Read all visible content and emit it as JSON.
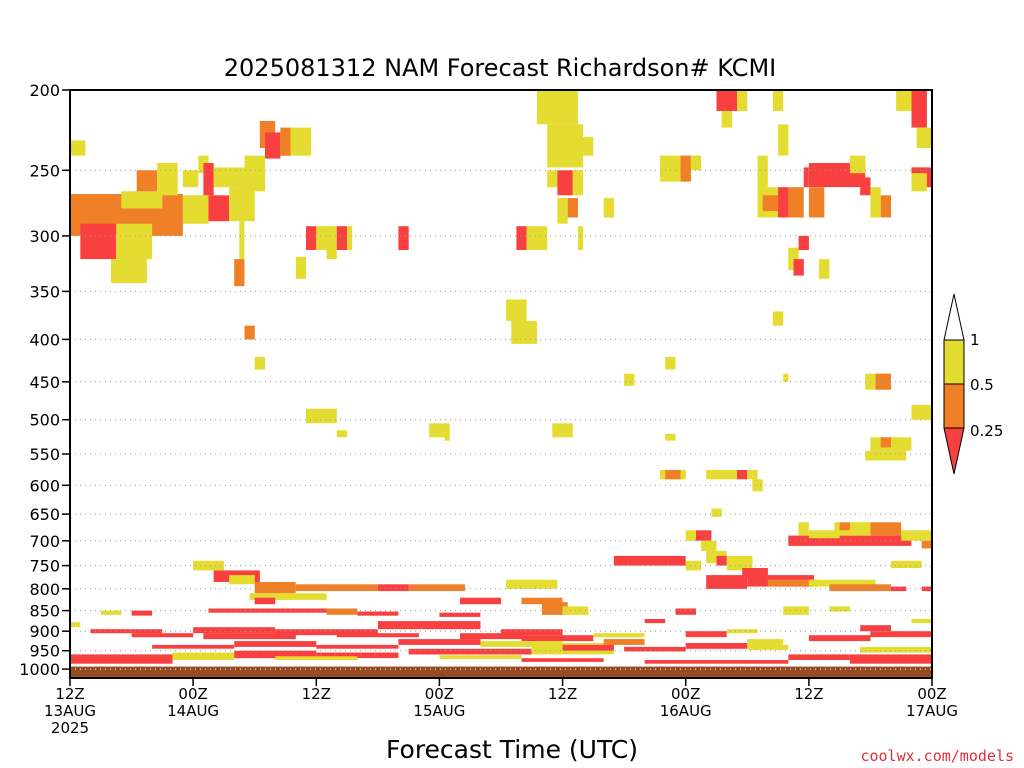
{
  "colors": {
    "lt_025": "#f84040",
    "from_025_to_05": "#f08028",
    "from_05_to_1": "#e4dc30",
    "ground": "#964b23",
    "watermark": "#e0303a"
  },
  "chart_data": {
    "type": "heatmap",
    "title": "2025081312 NAM Forecast Richardson# KCMI",
    "xlabel": "Forecast Time (UTC)",
    "ylabel": "",
    "x_range_hours": [
      0,
      84
    ],
    "y_range_hpa": [
      200,
      1025
    ],
    "y_scale": "log-pressure",
    "y_ticks": [
      200,
      250,
      300,
      350,
      400,
      450,
      500,
      550,
      600,
      650,
      700,
      750,
      800,
      850,
      900,
      950,
      1000
    ],
    "x_ticks": [
      {
        "hour": 0,
        "time": "12Z",
        "date": "13AUG",
        "year": "2025"
      },
      {
        "hour": 12,
        "time": "00Z",
        "date": "14AUG",
        "year": ""
      },
      {
        "hour": 24,
        "time": "12Z",
        "date": "",
        "year": ""
      },
      {
        "hour": 36,
        "time": "00Z",
        "date": "15AUG",
        "year": ""
      },
      {
        "hour": 48,
        "time": "12Z",
        "date": "",
        "year": ""
      },
      {
        "hour": 60,
        "time": "00Z",
        "date": "16AUG",
        "year": ""
      },
      {
        "hour": 72,
        "time": "12Z",
        "date": "",
        "year": ""
      },
      {
        "hour": 84,
        "time": "00Z",
        "date": "17AUG",
        "year": ""
      }
    ],
    "grid": "dotted horizontal at each pressure tick",
    "legend": {
      "placement": "right",
      "labels": [
        "1",
        "0.5",
        "0.25"
      ],
      "classes": [
        "> 1",
        "0.5-1",
        "0.25-0.5",
        "< 0.25"
      ]
    },
    "ground_level_hpa": 993,
    "cells": [
      [
        0,
        230,
        1.5,
        240,
        "y"
      ],
      [
        0,
        267,
        11,
        300,
        "o"
      ],
      [
        1,
        290,
        4.5,
        320,
        "r"
      ],
      [
        4.5,
        290,
        8,
        320,
        "y"
      ],
      [
        4,
        320,
        7.5,
        342,
        "y"
      ],
      [
        5,
        265,
        9,
        278,
        "y"
      ],
      [
        6.5,
        250,
        8.5,
        265,
        "o"
      ],
      [
        8.5,
        245,
        10.5,
        268,
        "y"
      ],
      [
        11,
        250,
        12.5,
        262,
        "y"
      ],
      [
        11,
        268,
        13.5,
        290,
        "y"
      ],
      [
        12.5,
        240,
        13.5,
        252,
        "y"
      ],
      [
        13,
        245,
        14,
        268,
        "r"
      ],
      [
        14,
        248,
        17,
        262,
        "y"
      ],
      [
        13.5,
        268,
        15.5,
        288,
        "r"
      ],
      [
        15.5,
        262,
        18,
        288,
        "y"
      ],
      [
        16.5,
        288,
        17,
        320,
        "y"
      ],
      [
        16,
        320,
        17,
        345,
        "o"
      ],
      [
        17,
        240,
        19,
        265,
        "y"
      ],
      [
        18.5,
        218,
        20,
        235,
        "o"
      ],
      [
        19,
        225,
        20.5,
        242,
        "r"
      ],
      [
        20.5,
        222,
        21.5,
        240,
        "o"
      ],
      [
        21.5,
        222,
        23.5,
        240,
        "y"
      ],
      [
        22,
        318,
        23,
        338,
        "y"
      ],
      [
        23,
        292,
        24,
        312,
        "r"
      ],
      [
        24,
        292,
        25.5,
        312,
        "y"
      ],
      [
        25,
        292,
        26,
        320,
        "y"
      ],
      [
        26,
        292,
        27,
        312,
        "r"
      ],
      [
        27,
        292,
        27.5,
        312,
        "y"
      ],
      [
        32,
        292,
        33,
        312,
        "r"
      ],
      [
        17,
        385,
        18,
        400,
        "o"
      ],
      [
        18,
        420,
        19,
        435,
        "y"
      ],
      [
        23,
        485,
        26,
        505,
        "y"
      ],
      [
        26,
        515,
        27,
        525,
        "y"
      ],
      [
        35,
        505,
        37,
        525,
        "y"
      ],
      [
        36.5,
        520,
        37,
        530,
        "y"
      ],
      [
        45.5,
        200,
        49.5,
        220,
        "y"
      ],
      [
        46.5,
        220,
        50,
        248,
        "y"
      ],
      [
        49,
        228,
        51,
        240,
        "y"
      ],
      [
        46.5,
        250,
        47.5,
        262,
        "y"
      ],
      [
        47.5,
        250,
        49,
        268,
        "r"
      ],
      [
        49,
        250,
        50,
        268,
        "y"
      ],
      [
        47.5,
        270,
        48.5,
        290,
        "y"
      ],
      [
        48.5,
        270,
        49.5,
        285,
        "o"
      ],
      [
        52,
        270,
        53,
        285,
        "y"
      ],
      [
        43.5,
        292,
        44.5,
        312,
        "r"
      ],
      [
        44.5,
        292,
        46.5,
        312,
        "y"
      ],
      [
        49.5,
        292,
        50,
        312,
        "y"
      ],
      [
        42.5,
        358,
        44.5,
        380,
        "y"
      ],
      [
        43,
        380,
        45.5,
        405,
        "y"
      ],
      [
        47,
        505,
        49,
        525,
        "y"
      ],
      [
        54,
        440,
        55,
        455,
        "y"
      ],
      [
        57.5,
        240,
        60.5,
        258,
        "y"
      ],
      [
        59.5,
        240,
        60.5,
        258,
        "o"
      ],
      [
        60.5,
        240,
        61.5,
        250,
        "y"
      ],
      [
        58,
        420,
        59,
        435,
        "y"
      ],
      [
        58,
        520,
        59,
        530,
        "y"
      ],
      [
        57.5,
        575,
        60,
        590,
        "y"
      ],
      [
        58,
        575,
        59.5,
        590,
        "o"
      ],
      [
        62,
        575,
        65,
        590,
        "y"
      ],
      [
        65,
        575,
        66,
        590,
        "r"
      ],
      [
        66,
        575,
        67,
        590,
        "y"
      ],
      [
        66.5,
        590,
        67.5,
        610,
        "y"
      ],
      [
        62.5,
        640,
        63.5,
        655,
        "y"
      ],
      [
        63,
        200,
        65,
        212,
        "r"
      ],
      [
        65,
        200,
        66,
        212,
        "y"
      ],
      [
        63.5,
        212,
        64.5,
        222,
        "y"
      ],
      [
        68.5,
        200,
        69.5,
        212,
        "y"
      ],
      [
        67,
        240,
        68,
        262,
        "y"
      ],
      [
        67,
        262,
        70,
        285,
        "y"
      ],
      [
        67.5,
        268,
        69,
        280,
        "o"
      ],
      [
        69,
        262,
        70,
        285,
        "r"
      ],
      [
        70,
        262,
        71.5,
        285,
        "o"
      ],
      [
        71.5,
        248,
        72,
        262,
        "r"
      ],
      [
        72,
        245,
        77.5,
        262,
        "r"
      ],
      [
        72,
        262,
        73.5,
        285,
        "o"
      ],
      [
        76,
        240,
        77.5,
        252,
        "y"
      ],
      [
        77,
        255,
        78,
        268,
        "r"
      ],
      [
        78,
        262,
        79,
        285,
        "y"
      ],
      [
        79,
        268,
        80,
        285,
        "o"
      ],
      [
        82,
        200,
        83.5,
        222,
        "r"
      ],
      [
        80.5,
        200,
        82,
        212,
        "y"
      ],
      [
        82.5,
        222,
        84,
        235,
        "y"
      ],
      [
        82,
        248,
        84,
        262,
        "r"
      ],
      [
        82,
        252,
        83.5,
        265,
        "y"
      ],
      [
        69,
        220,
        70,
        240,
        "y"
      ],
      [
        70,
        310,
        71,
        330,
        "y"
      ],
      [
        71,
        300,
        72,
        312,
        "r"
      ],
      [
        70.5,
        320,
        71.5,
        335,
        "r"
      ],
      [
        73,
        320,
        74,
        338,
        "y"
      ],
      [
        68.5,
        370,
        69.5,
        385,
        "y"
      ],
      [
        69.5,
        440,
        70,
        450,
        "y"
      ],
      [
        77.5,
        440,
        80,
        460,
        "y"
      ],
      [
        78.5,
        440,
        80,
        460,
        "o"
      ],
      [
        78,
        525,
        82,
        545,
        "y"
      ],
      [
        79,
        525,
        80,
        540,
        "o"
      ],
      [
        80,
        525,
        81,
        540,
        "y"
      ],
      [
        77.5,
        545,
        81.5,
        560,
        "y"
      ],
      [
        82,
        480,
        84,
        500,
        "y"
      ],
      [
        60,
        680,
        61,
        700,
        "y"
      ],
      [
        61,
        680,
        62.5,
        700,
        "r"
      ],
      [
        61.5,
        700,
        63,
        720,
        "y"
      ],
      [
        62,
        720,
        64,
        745,
        "y"
      ],
      [
        63,
        730,
        64,
        750,
        "r"
      ],
      [
        64,
        730,
        66.5,
        760,
        "y"
      ],
      [
        65.5,
        755,
        68,
        775,
        "r"
      ],
      [
        70,
        690,
        82,
        710,
        "r"
      ],
      [
        71,
        665,
        72,
        690,
        "y"
      ],
      [
        72,
        680,
        75,
        695,
        "y"
      ],
      [
        74.5,
        665,
        78,
        690,
        "y"
      ],
      [
        75,
        665,
        76,
        680,
        "o"
      ],
      [
        78,
        665,
        81,
        690,
        "o"
      ],
      [
        81,
        680,
        84,
        700,
        "y"
      ],
      [
        83,
        700,
        84,
        715,
        "o"
      ],
      [
        80,
        740,
        83,
        755,
        "y"
      ],
      [
        53,
        730,
        60,
        750,
        "r"
      ],
      [
        60,
        740,
        61.5,
        760,
        "y"
      ],
      [
        12,
        740,
        15,
        760,
        "y"
      ],
      [
        14,
        760,
        18.5,
        785,
        "r"
      ],
      [
        15.5,
        770,
        18,
        790,
        "y"
      ],
      [
        18,
        785,
        22,
        810,
        "o"
      ],
      [
        22,
        790,
        30,
        805,
        "o"
      ],
      [
        30,
        790,
        33,
        805,
        "r"
      ],
      [
        33,
        790,
        38.5,
        805,
        "o"
      ],
      [
        17.5,
        810,
        25,
        825,
        "y"
      ],
      [
        18,
        820,
        20,
        835,
        "r"
      ],
      [
        13.5,
        845,
        25.5,
        855,
        "r"
      ],
      [
        42.5,
        780,
        47.5,
        800,
        "y"
      ],
      [
        44,
        820,
        48,
        835,
        "o"
      ],
      [
        46,
        830,
        48.5,
        860,
        "o"
      ],
      [
        48,
        840,
        50.5,
        860,
        "y"
      ],
      [
        62,
        770,
        66,
        800,
        "r"
      ],
      [
        66,
        770,
        72.5,
        795,
        "r"
      ],
      [
        68,
        780,
        73,
        795,
        "o"
      ],
      [
        72,
        780,
        78.5,
        795,
        "y"
      ],
      [
        74,
        790,
        80,
        805,
        "o"
      ],
      [
        80,
        795,
        81.5,
        805,
        "r"
      ],
      [
        83,
        795,
        84,
        805,
        "r"
      ],
      [
        69.5,
        840,
        72,
        860,
        "y"
      ],
      [
        77,
        885,
        80,
        900,
        "r"
      ],
      [
        0,
        878,
        1,
        890,
        "y"
      ],
      [
        0,
        960,
        10,
        985,
        "r"
      ],
      [
        10,
        955,
        16,
        975,
        "y"
      ],
      [
        16,
        950,
        24,
        970,
        "r"
      ],
      [
        24,
        955,
        32,
        970,
        "r"
      ],
      [
        33,
        945,
        45,
        960,
        "r"
      ],
      [
        45,
        930,
        53,
        960,
        "y"
      ],
      [
        48,
        935,
        53,
        950,
        "r"
      ],
      [
        56,
        975,
        70,
        985,
        "r"
      ],
      [
        70,
        960,
        76,
        975,
        "r"
      ],
      [
        76,
        960,
        84,
        985,
        "r"
      ],
      [
        66,
        920,
        69.5,
        935,
        "y"
      ],
      [
        77,
        940,
        84,
        955,
        "y"
      ],
      [
        2,
        895,
        9,
        905,
        "r"
      ],
      [
        6,
        905,
        12,
        915,
        "r"
      ],
      [
        12,
        890,
        20,
        905,
        "r"
      ],
      [
        13,
        905,
        22,
        920,
        "r"
      ],
      [
        20,
        895,
        30,
        910,
        "r"
      ],
      [
        26,
        905,
        34,
        915,
        "r"
      ],
      [
        30,
        875,
        40,
        895,
        "r"
      ],
      [
        38,
        905,
        44,
        920,
        "r"
      ],
      [
        42,
        895,
        48,
        910,
        "r"
      ],
      [
        44,
        910,
        51,
        925,
        "r"
      ],
      [
        51,
        905,
        56,
        915,
        "y"
      ],
      [
        60,
        900,
        64,
        915,
        "r"
      ],
      [
        64,
        895,
        67,
        905,
        "y"
      ],
      [
        72,
        910,
        78,
        925,
        "r"
      ],
      [
        78,
        900,
        84,
        915,
        "r"
      ],
      [
        8,
        935,
        16,
        945,
        "r"
      ],
      [
        16,
        925,
        24,
        940,
        "r"
      ],
      [
        24,
        935,
        32,
        945,
        "r"
      ],
      [
        32,
        920,
        40,
        935,
        "r"
      ],
      [
        40,
        925,
        48,
        940,
        "y"
      ],
      [
        54,
        940,
        60,
        952,
        "r"
      ],
      [
        60,
        930,
        66,
        945,
        "r"
      ],
      [
        66,
        935,
        70,
        948,
        "y"
      ],
      [
        3,
        850,
        5,
        860,
        "y"
      ],
      [
        6,
        850,
        8,
        862,
        "r"
      ],
      [
        25,
        845,
        28,
        860,
        "o"
      ],
      [
        28,
        852,
        32,
        862,
        "r"
      ],
      [
        36,
        855,
        40,
        865,
        "r"
      ],
      [
        38,
        820,
        42,
        835,
        "r"
      ],
      [
        56,
        870,
        58,
        880,
        "r"
      ],
      [
        59,
        845,
        61,
        860,
        "r"
      ],
      [
        74,
        840,
        76,
        852,
        "y"
      ],
      [
        82,
        870,
        84,
        880,
        "y"
      ],
      [
        52,
        920,
        56,
        935,
        "o"
      ],
      [
        20,
        965,
        28,
        975,
        "y"
      ],
      [
        36,
        962,
        44,
        972,
        "y"
      ],
      [
        44,
        970,
        52,
        980,
        "r"
      ]
    ]
  },
  "watermark": "coolwx.com/models"
}
